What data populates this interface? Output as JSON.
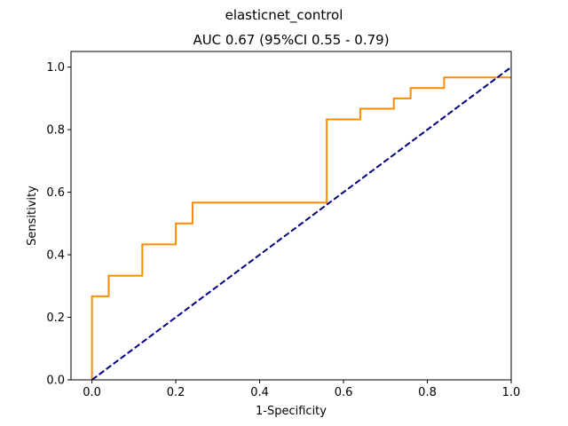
{
  "chart_data": {
    "type": "line",
    "suptitle": "elasticnet_control",
    "title": "AUC 0.67 (95%CI 0.55 - 0.79)",
    "xlabel": "1-Specificity",
    "ylabel": "Sensitivity",
    "xlim": [
      -0.05,
      1.0
    ],
    "ylim": [
      0.0,
      1.05
    ],
    "xticks": [
      0.0,
      0.2,
      0.4,
      0.6,
      0.8,
      1.0
    ],
    "xtick_labels": [
      "0.0",
      "0.2",
      "0.4",
      "0.6",
      "0.8",
      "1.0"
    ],
    "yticks": [
      0.0,
      0.2,
      0.4,
      0.6,
      0.8,
      1.0
    ],
    "ytick_labels": [
      "0.0",
      "0.2",
      "0.4",
      "0.6",
      "0.8",
      "1.0"
    ],
    "grid": false,
    "series": [
      {
        "style": "solid",
        "color": "#ff8c00",
        "x": [
          0.0,
          0.0,
          0.04,
          0.04,
          0.12,
          0.12,
          0.2,
          0.2,
          0.24,
          0.24,
          0.56,
          0.56,
          0.64,
          0.64,
          0.72,
          0.72,
          0.76,
          0.76,
          0.84,
          0.84,
          1.0
        ],
        "y": [
          0.0,
          0.267,
          0.267,
          0.333,
          0.333,
          0.433,
          0.433,
          0.5,
          0.5,
          0.567,
          0.567,
          0.833,
          0.833,
          0.867,
          0.867,
          0.9,
          0.9,
          0.933,
          0.933,
          0.967,
          0.967
        ]
      },
      {
        "style": "dashed",
        "color": "#000080",
        "x": [
          0.0,
          1.0
        ],
        "y": [
          0.0,
          1.0
        ]
      }
    ]
  }
}
